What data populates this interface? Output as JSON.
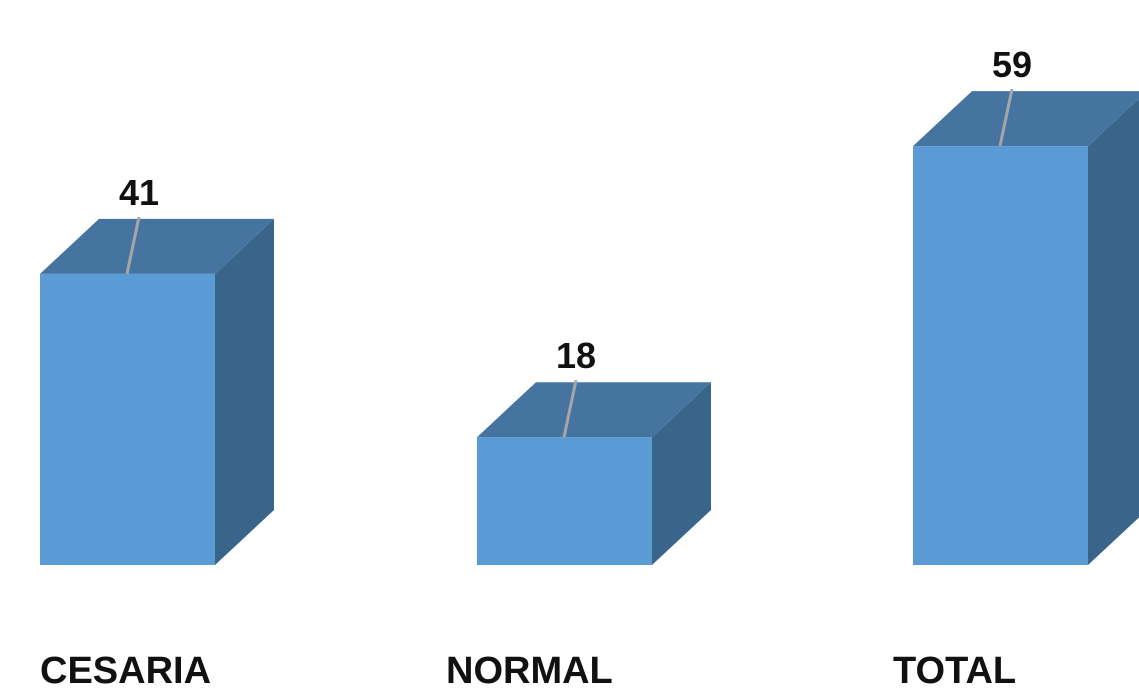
{
  "chart_data": {
    "type": "bar",
    "categories": [
      "CESARIA",
      "NORMAL",
      "TOTAL"
    ],
    "values": [
      41,
      18,
      59
    ],
    "data_labels": [
      "41",
      "18",
      "59"
    ],
    "title": "",
    "xlabel": "",
    "ylabel": "",
    "ylim": [
      0,
      59
    ],
    "grid": false,
    "legend": "none",
    "style": "3d-column",
    "colors": {
      "front": "#5b9bd5",
      "top": "#44749f",
      "side": "#386589",
      "leader": "#a6a6a6",
      "text": "#111111"
    }
  }
}
